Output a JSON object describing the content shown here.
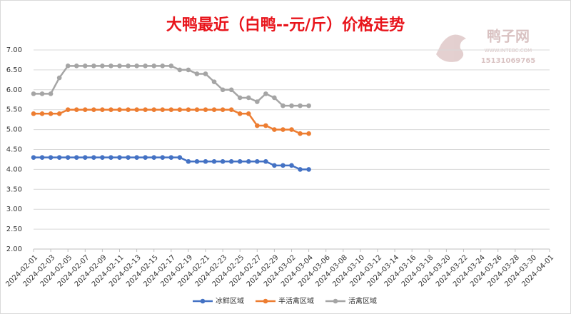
{
  "chart_data": {
    "type": "line",
    "title": "大鸭最近（白鸭--元/斤）价格走势",
    "watermark": {
      "name": "鸭子网",
      "site": "WWW.INTEBC.COM",
      "phone": "15131069765"
    },
    "x": [
      "2024-02-01",
      "2024-02-02",
      "2024-02-03",
      "2024-02-04",
      "2024-02-05",
      "2024-02-06",
      "2024-02-07",
      "2024-02-08",
      "2024-02-09",
      "2024-02-10",
      "2024-02-11",
      "2024-02-12",
      "2024-02-13",
      "2024-02-14",
      "2024-02-15",
      "2024-02-16",
      "2024-02-17",
      "2024-02-18",
      "2024-02-19",
      "2024-02-20",
      "2024-02-21",
      "2024-02-22",
      "2024-02-23",
      "2024-02-24",
      "2024-02-25",
      "2024-02-26",
      "2024-02-27",
      "2024-02-28",
      "2024-02-29",
      "2024-03-01",
      "2024-03-02",
      "2024-03-03",
      "2024-03-04"
    ],
    "series": [
      {
        "name": "冰鲜区域",
        "color": "#4472c4",
        "values": [
          4.3,
          4.3,
          4.3,
          4.3,
          4.3,
          4.3,
          4.3,
          4.3,
          4.3,
          4.3,
          4.3,
          4.3,
          4.3,
          4.3,
          4.3,
          4.3,
          4.3,
          4.3,
          4.2,
          4.2,
          4.2,
          4.2,
          4.2,
          4.2,
          4.2,
          4.2,
          4.2,
          4.2,
          4.1,
          4.1,
          4.1,
          4.0,
          4.0
        ]
      },
      {
        "name": "半活禽区域",
        "color": "#ed7d31",
        "values": [
          5.4,
          5.4,
          5.4,
          5.4,
          5.5,
          5.5,
          5.5,
          5.5,
          5.5,
          5.5,
          5.5,
          5.5,
          5.5,
          5.5,
          5.5,
          5.5,
          5.5,
          5.5,
          5.5,
          5.5,
          5.5,
          5.5,
          5.5,
          5.5,
          5.4,
          5.4,
          5.1,
          5.1,
          5.0,
          5.0,
          5.0,
          4.9,
          4.9
        ]
      },
      {
        "name": "活禽区域",
        "color": "#a5a5a5",
        "values": [
          5.9,
          5.9,
          5.9,
          6.3,
          6.6,
          6.6,
          6.6,
          6.6,
          6.6,
          6.6,
          6.6,
          6.6,
          6.6,
          6.6,
          6.6,
          6.6,
          6.6,
          6.5,
          6.5,
          6.4,
          6.4,
          6.2,
          6.0,
          6.0,
          5.8,
          5.8,
          5.7,
          5.9,
          5.8,
          5.6,
          5.6,
          5.6,
          5.6
        ]
      }
    ],
    "xlim": [
      "2024-02-01",
      "2024-04-01"
    ],
    "xticks": [
      "2024-02-01",
      "2024-02-03",
      "2024-02-05",
      "2024-02-07",
      "2024-02-09",
      "2024-02-11",
      "2024-02-13",
      "2024-02-15",
      "2024-02-17",
      "2024-02-19",
      "2024-02-21",
      "2024-02-23",
      "2024-02-25",
      "2024-02-27",
      "2024-02-29",
      "2024-03-02",
      "2024-03-04",
      "2024-03-06",
      "2024-03-08",
      "2024-03-10",
      "2024-03-12",
      "2024-03-14",
      "2024-03-16",
      "2024-03-18",
      "2024-03-20",
      "2024-03-22",
      "2024-03-24",
      "2024-03-26",
      "2024-03-28",
      "2024-03-30",
      "2024-04-01"
    ],
    "ylim": [
      2,
      7
    ],
    "yticks": [
      {
        "value": 2,
        "label": "2.00"
      },
      {
        "value": 2.5,
        "label": "2.50"
      },
      {
        "value": 3,
        "label": "3.00"
      },
      {
        "value": 3.5,
        "label": "3.50"
      },
      {
        "value": 4,
        "label": "4.00"
      },
      {
        "value": 4.5,
        "label": "4.50"
      },
      {
        "value": 5,
        "label": "5.00"
      },
      {
        "value": 5.5,
        "label": "5.50"
      },
      {
        "value": 6,
        "label": "6.00"
      },
      {
        "value": 6.5,
        "label": "6.50"
      },
      {
        "value": 7,
        "label": "7.00"
      }
    ],
    "grid": true,
    "legend": "bottom"
  }
}
